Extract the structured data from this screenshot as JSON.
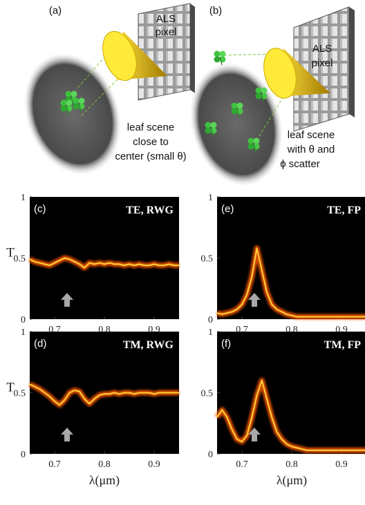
{
  "diagrams": [
    {
      "label": "(a)",
      "sensor": [
        "ALS",
        "pixel"
      ],
      "caption": [
        "leaf scene",
        "close to",
        "center (small θ)"
      ]
    },
    {
      "label": "(b)",
      "sensor": [
        "ALS",
        "pixel"
      ],
      "caption": [
        "leaf scene",
        "with θ and",
        "ϕ scatter"
      ]
    }
  ],
  "chart_data": [
    {
      "type": "line",
      "label": "(c)",
      "title": "TE, RWG",
      "y_label": "T",
      "x": [
        0.65,
        0.66,
        0.67,
        0.68,
        0.69,
        0.7,
        0.71,
        0.72,
        0.73,
        0.74,
        0.75,
        0.76,
        0.77,
        0.78,
        0.79,
        0.8,
        0.81,
        0.82,
        0.83,
        0.84,
        0.85,
        0.86,
        0.87,
        0.88,
        0.89,
        0.9,
        0.91,
        0.92,
        0.93,
        0.94,
        0.95
      ],
      "values": [
        0.49,
        0.47,
        0.46,
        0.45,
        0.44,
        0.46,
        0.48,
        0.5,
        0.49,
        0.47,
        0.45,
        0.42,
        0.46,
        0.45,
        0.46,
        0.45,
        0.46,
        0.45,
        0.45,
        0.44,
        0.45,
        0.44,
        0.45,
        0.44,
        0.44,
        0.45,
        0.44,
        0.44,
        0.45,
        0.44,
        0.44
      ],
      "xlim": [
        0.65,
        0.95
      ],
      "ylim": [
        0,
        1
      ],
      "xticks": [
        0.7,
        0.8,
        0.9
      ],
      "yticks": [
        0,
        0.5,
        1
      ],
      "arrow_x": 0.725,
      "color": "#ff5a00"
    },
    {
      "type": "line",
      "label": "(e)",
      "title": "TE, FP",
      "x": [
        0.65,
        0.66,
        0.67,
        0.68,
        0.69,
        0.7,
        0.71,
        0.72,
        0.73,
        0.74,
        0.75,
        0.76,
        0.77,
        0.78,
        0.79,
        0.8,
        0.81,
        0.82,
        0.83,
        0.84,
        0.85,
        0.86,
        0.87,
        0.88,
        0.89,
        0.9,
        0.91,
        0.92,
        0.93,
        0.94,
        0.95
      ],
      "values": [
        0.05,
        0.04,
        0.05,
        0.06,
        0.08,
        0.12,
        0.2,
        0.35,
        0.58,
        0.4,
        0.22,
        0.12,
        0.08,
        0.06,
        0.04,
        0.03,
        0.02,
        0.02,
        0.02,
        0.02,
        0.02,
        0.02,
        0.02,
        0.02,
        0.02,
        0.02,
        0.02,
        0.02,
        0.02,
        0.02,
        0.02
      ],
      "xlim": [
        0.65,
        0.95
      ],
      "ylim": [
        0,
        1
      ],
      "xticks": [
        0.7,
        0.8,
        0.9
      ],
      "yticks": [
        0,
        0.5,
        1
      ],
      "arrow_x": 0.725,
      "color": "#ff5a00"
    },
    {
      "type": "line",
      "label": "(d)",
      "title": "TM, RWG",
      "y_label": "T",
      "x_label": "λ(μm)",
      "x": [
        0.65,
        0.66,
        0.67,
        0.68,
        0.69,
        0.7,
        0.71,
        0.72,
        0.73,
        0.74,
        0.75,
        0.76,
        0.77,
        0.78,
        0.79,
        0.8,
        0.81,
        0.82,
        0.83,
        0.84,
        0.85,
        0.86,
        0.87,
        0.88,
        0.89,
        0.9,
        0.91,
        0.92,
        0.93,
        0.94,
        0.95
      ],
      "values": [
        0.57,
        0.55,
        0.53,
        0.5,
        0.47,
        0.43,
        0.4,
        0.44,
        0.5,
        0.52,
        0.51,
        0.45,
        0.41,
        0.45,
        0.48,
        0.49,
        0.49,
        0.5,
        0.49,
        0.5,
        0.5,
        0.49,
        0.5,
        0.5,
        0.5,
        0.49,
        0.5,
        0.5,
        0.5,
        0.5,
        0.5
      ],
      "xlim": [
        0.65,
        0.95
      ],
      "ylim": [
        0,
        1
      ],
      "xticks": [
        0.7,
        0.8,
        0.9
      ],
      "yticks": [
        0,
        0.5,
        1
      ],
      "arrow_x": 0.725,
      "color": "#ff5a00"
    },
    {
      "type": "line",
      "label": "(f)",
      "title": "TM, FP",
      "x_label": "λ(μm)",
      "x": [
        0.65,
        0.66,
        0.67,
        0.68,
        0.69,
        0.7,
        0.71,
        0.72,
        0.73,
        0.74,
        0.75,
        0.76,
        0.77,
        0.78,
        0.79,
        0.8,
        0.81,
        0.82,
        0.83,
        0.84,
        0.85,
        0.86,
        0.87,
        0.88,
        0.89,
        0.9,
        0.91,
        0.92,
        0.93,
        0.94,
        0.95
      ],
      "values": [
        0.3,
        0.36,
        0.3,
        0.2,
        0.12,
        0.1,
        0.15,
        0.3,
        0.48,
        0.6,
        0.45,
        0.3,
        0.18,
        0.12,
        0.08,
        0.06,
        0.05,
        0.04,
        0.03,
        0.03,
        0.03,
        0.03,
        0.03,
        0.03,
        0.03,
        0.03,
        0.03,
        0.03,
        0.03,
        0.03,
        0.03
      ],
      "xlim": [
        0.65,
        0.95
      ],
      "ylim": [
        0,
        1
      ],
      "xticks": [
        0.7,
        0.8,
        0.9
      ],
      "yticks": [
        0,
        0.5,
        1
      ],
      "arrow_x": 0.725,
      "color": "#ff5a00"
    }
  ]
}
